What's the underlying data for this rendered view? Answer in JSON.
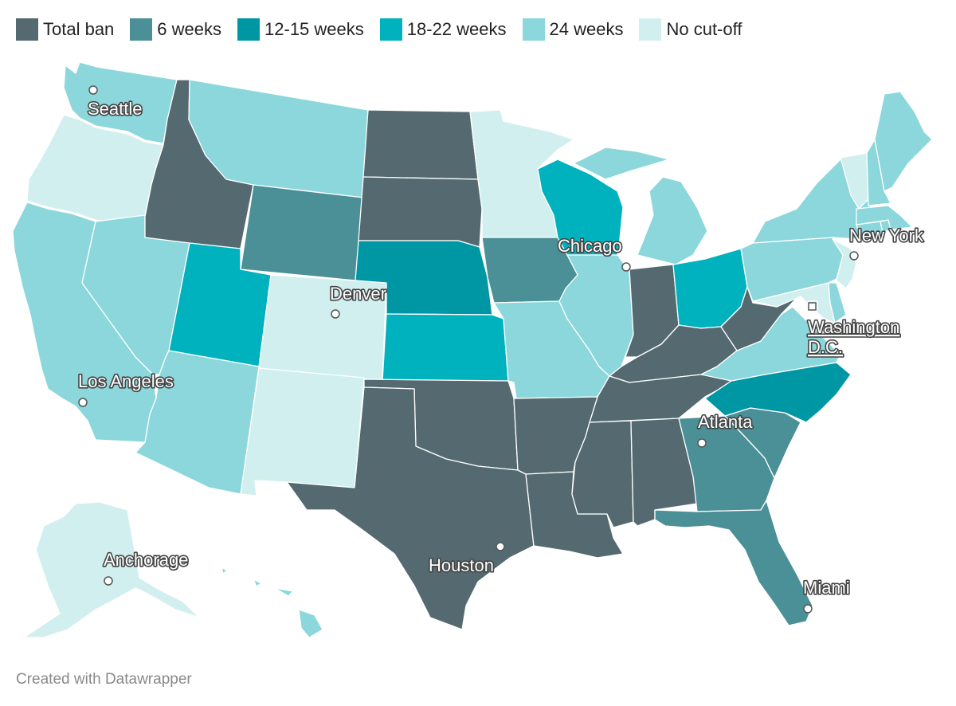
{
  "legend": [
    {
      "label": "Total ban",
      "color": "#546a70"
    },
    {
      "label": "6 weeks",
      "color": "#4b8f97"
    },
    {
      "label": "12-15 weeks",
      "color": "#0097a4"
    },
    {
      "label": "18-22 weeks",
      "color": "#00b2bd"
    },
    {
      "label": "24 weeks",
      "color": "#8bd7dc"
    },
    {
      "label": "No cut-off",
      "color": "#d2eff0"
    }
  ],
  "cities": {
    "seattle": "Seattle",
    "chicago": "Chicago",
    "new_york": "New York",
    "denver": "Denver",
    "washington_line1": "Washington",
    "washington_line2": "D.C.",
    "los_angeles": "Los Angeles",
    "atlanta": "Atlanta",
    "anchorage": "Anchorage",
    "houston": "Houston",
    "miami": "Miami"
  },
  "states": {
    "WA": "24 weeks",
    "OR": "No cut-off",
    "CA": "24 weeks",
    "NV": "24 weeks",
    "ID": "Total ban",
    "MT": "24 weeks",
    "WY": "6 weeks",
    "UT": "18-22 weeks",
    "AZ": "24 weeks",
    "CO": "No cut-off",
    "NM": "No cut-off",
    "ND": "Total ban",
    "SD": "Total ban",
    "NE": "12-15 weeks",
    "KS": "18-22 weeks",
    "OK": "Total ban",
    "TX": "Total ban",
    "MN": "No cut-off",
    "IA": "6 weeks",
    "MO": "24 weeks",
    "AR": "Total ban",
    "LA": "Total ban",
    "WI": "18-22 weeks",
    "IL": "24 weeks",
    "MI": "24 weeks",
    "IN": "Total ban",
    "OH": "18-22 weeks",
    "KY": "Total ban",
    "TN": "Total ban",
    "MS": "Total ban",
    "AL": "Total ban",
    "GA": "6 weeks",
    "FL": "6 weeks",
    "SC": "6 weeks",
    "NC": "12-15 weeks",
    "VA": "24 weeks",
    "WV": "Total ban",
    "PA": "24 weeks",
    "NY": "24 weeks",
    "VT": "No cut-off",
    "NH": "24 weeks",
    "ME": "24 weeks",
    "MA": "24 weeks",
    "CT": "24 weeks",
    "RI": "24 weeks",
    "NJ": "No cut-off",
    "DE": "24 weeks",
    "MD": "No cut-off",
    "DC": "No cut-off",
    "AK": "No cut-off",
    "HI": "24 weeks"
  },
  "footer": "Created with Datawrapper"
}
